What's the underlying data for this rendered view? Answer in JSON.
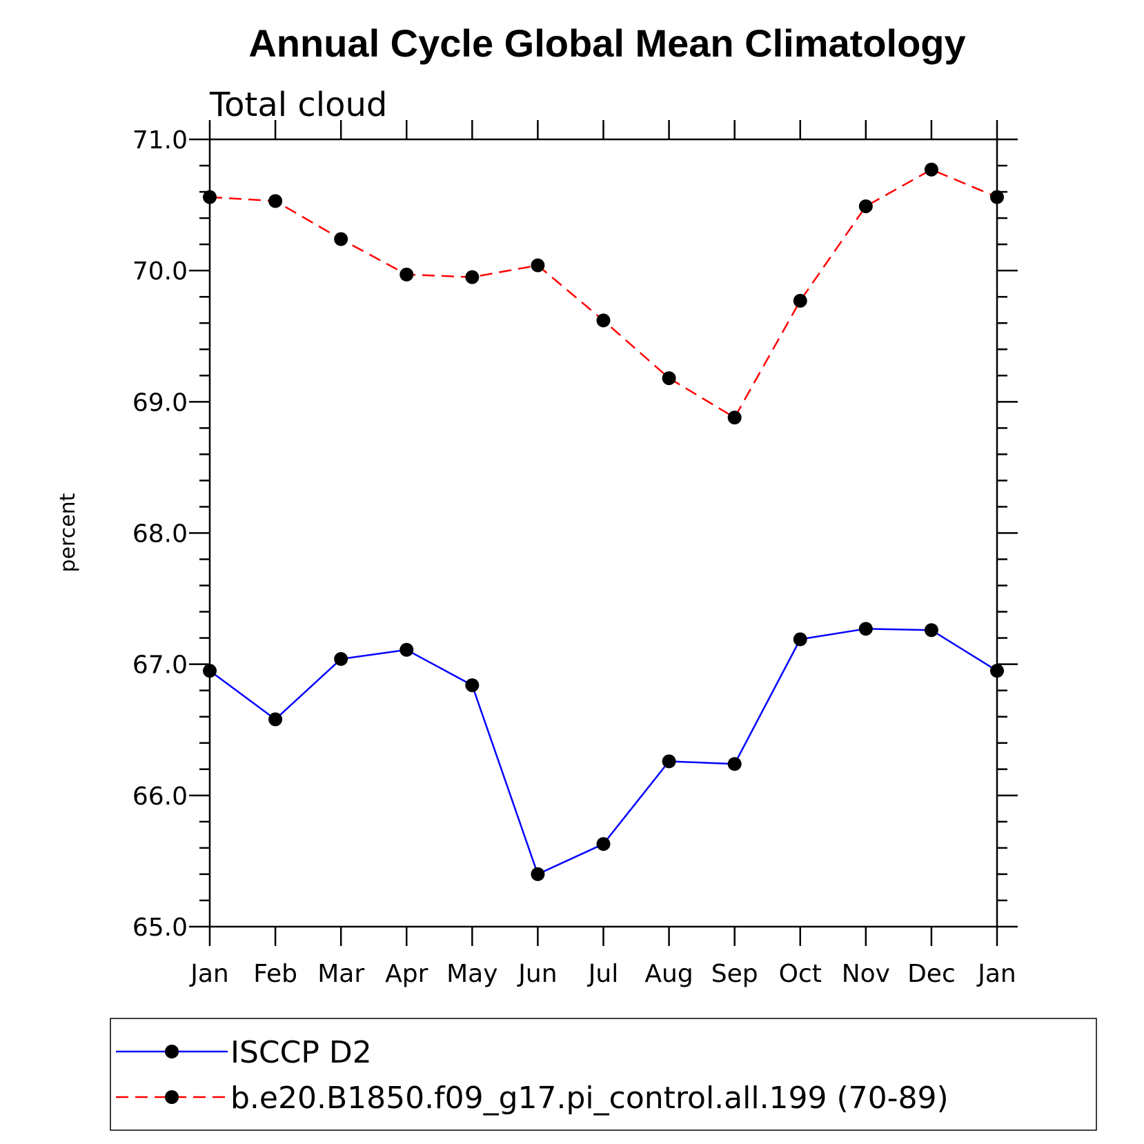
{
  "chart_data": {
    "type": "line",
    "title": "Annual Cycle Global Mean Climatology",
    "subtitle": "Total cloud",
    "xlabel": "",
    "ylabel": "percent",
    "categories": [
      "Jan",
      "Feb",
      "Mar",
      "Apr",
      "May",
      "Jun",
      "Jul",
      "Aug",
      "Sep",
      "Oct",
      "Nov",
      "Dec",
      "Jan"
    ],
    "ylim": [
      65.0,
      71.0
    ],
    "yticks": [
      "65.0",
      "66.0",
      "67.0",
      "68.0",
      "69.0",
      "70.0",
      "71.0"
    ],
    "grid": false,
    "legend_position": "bottom",
    "series": [
      {
        "name": "ISCCP D2",
        "color": "#0000ff",
        "style": "solid",
        "marker": "filled-circle",
        "values": [
          66.95,
          66.58,
          67.04,
          67.11,
          66.84,
          65.4,
          65.63,
          66.26,
          66.24,
          67.19,
          67.27,
          67.26,
          66.95
        ]
      },
      {
        "name": "b.e20.B1850.f09_g17.pi_control.all.199 (70-89)",
        "color": "#ff0000",
        "style": "dashed",
        "marker": "filled-circle",
        "values": [
          70.56,
          70.53,
          70.24,
          69.97,
          69.95,
          70.04,
          69.62,
          69.18,
          68.88,
          69.77,
          70.49,
          70.77,
          70.56
        ]
      }
    ]
  }
}
